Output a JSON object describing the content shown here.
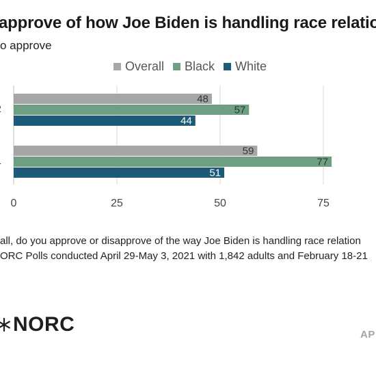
{
  "title": "approve of how Joe Biden is handling race relatio",
  "subtitle": "o approve",
  "chart_data": {
    "type": "bar",
    "orientation": "horizontal",
    "categories": [
      "2",
      "1"
    ],
    "series": [
      {
        "name": "Overall",
        "color": "#a6a6a6",
        "values": [
          48,
          59
        ]
      },
      {
        "name": "Black",
        "color": "#6f9f83",
        "values": [
          57,
          77
        ]
      },
      {
        "name": "White",
        "color": "#1d5a78",
        "values": [
          44,
          51
        ]
      }
    ],
    "xlim": [
      0,
      90
    ],
    "xticks": [
      "0",
      "25",
      "50",
      "75"
    ],
    "grid": true,
    "legend_position": "top",
    "data_labels": true
  },
  "notes": [
    "all, do you approve or disapprove of the way Joe Biden is handling race relation",
    "ORC Polls conducted April 29-May 3, 2021 with 1,842 adults and February 18-21"
  ],
  "logo": {
    "text": "NORC",
    "icon": "star-burst-icon"
  },
  "footer": {
    "ap_text": "AP"
  }
}
